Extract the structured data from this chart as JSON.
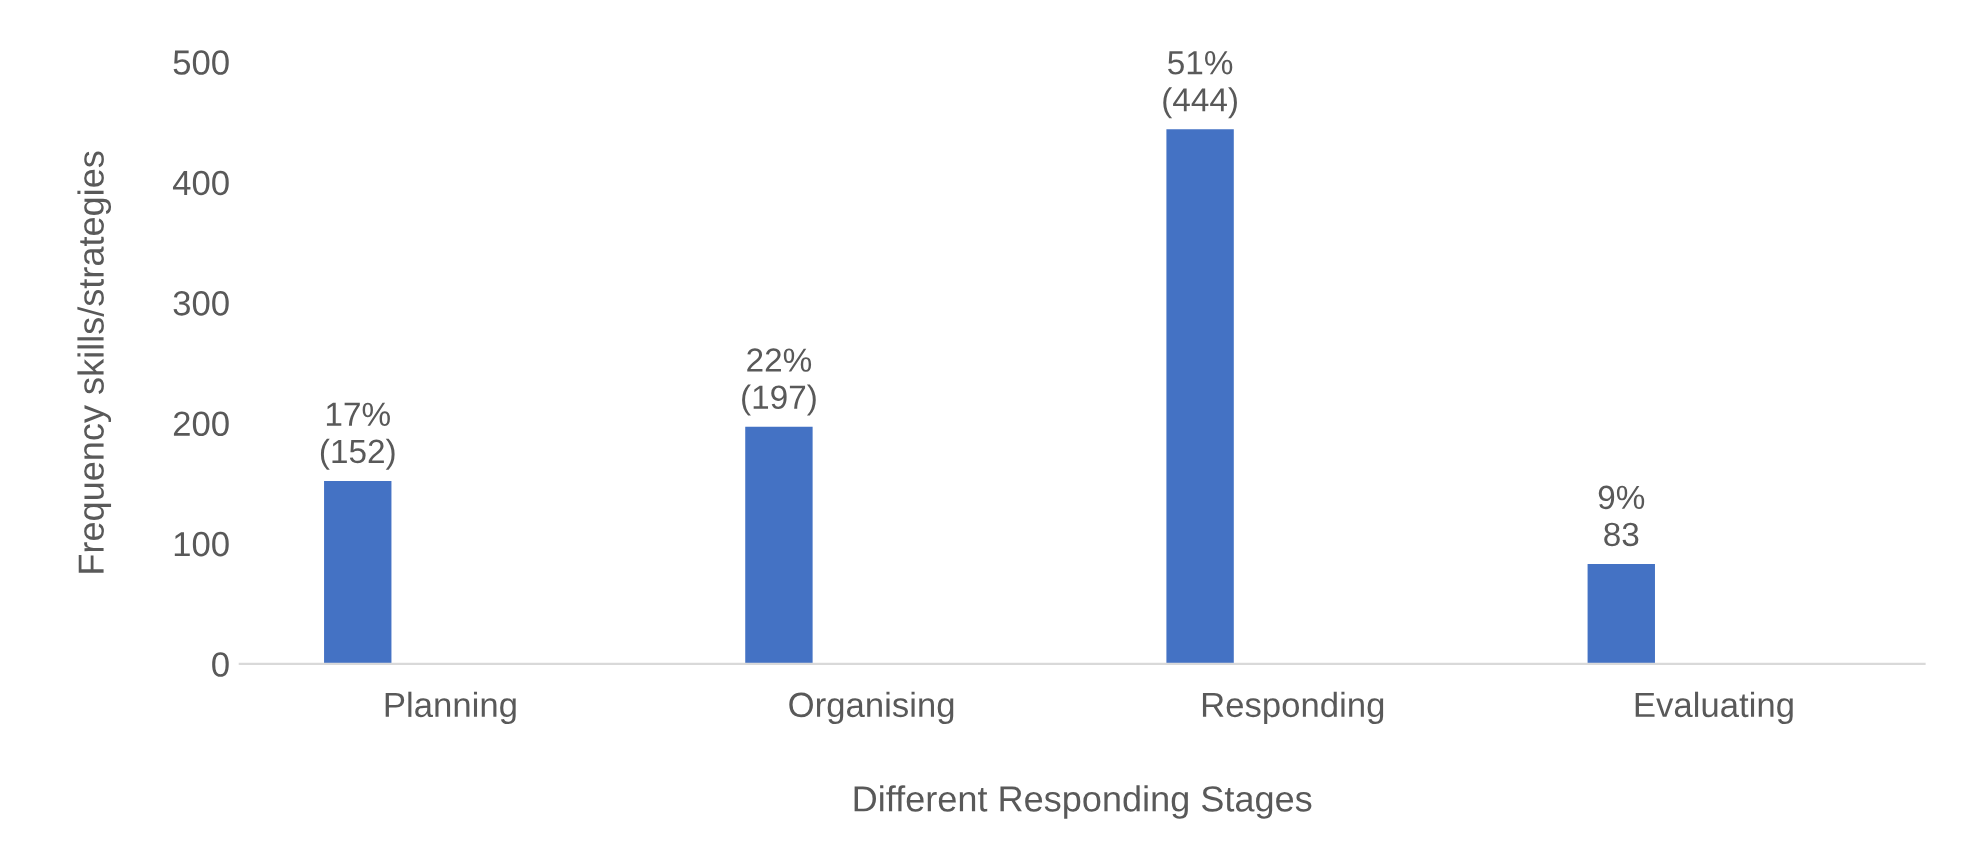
{
  "chart_data": {
    "type": "bar",
    "xlabel": "Different Responding Stages",
    "ylabel": "Frequency skills/strategies",
    "categories": [
      "Planning",
      "Organising",
      "Responding",
      "Evaluating"
    ],
    "values": [
      152,
      197,
      444,
      83
    ],
    "color": "#4472c4",
    "value_labels": [
      "17%\n(152)",
      "22%\n(197)",
      "51%\n(444)",
      "9%\n83"
    ],
    "ylim": [
      0,
      500
    ],
    "yticks": [
      0,
      100,
      200,
      300,
      400,
      500
    ],
    "grid": false
  }
}
